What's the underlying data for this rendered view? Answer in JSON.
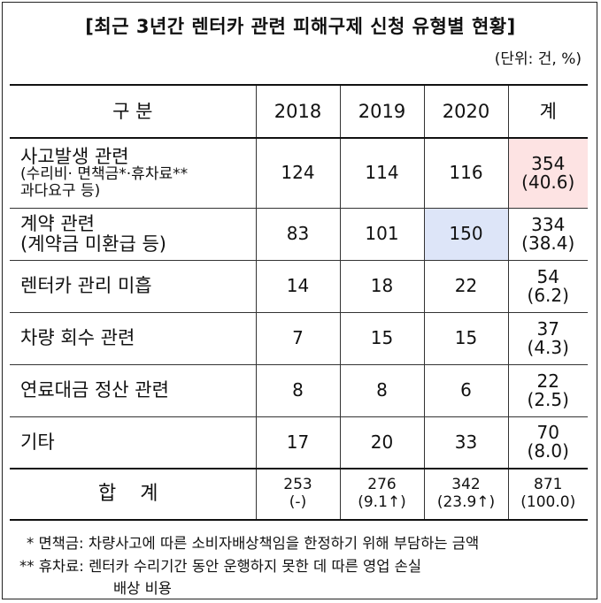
{
  "title": "[최근 3년간 렌터카 관련 피해구제 신청 유형별 현황]",
  "unit": "(단위: 건, %)",
  "table": {
    "headers": [
      "구 분",
      "2018",
      "2019",
      "2020",
      "계"
    ],
    "rows": [
      {
        "label": "사고발생 관련",
        "sub1": "(수리비· 면책금*·휴차료**",
        "sub2": "과다요구 등)",
        "v2018": "124",
        "v2019": "114",
        "v2020": "116",
        "total": "354",
        "pct": "(40.6)"
      },
      {
        "label": "계약 관련",
        "sub1": "(계약금 미환급 등)",
        "v2018": "83",
        "v2019": "101",
        "v2020": "150",
        "total": "334",
        "pct": "(38.4)"
      },
      {
        "label": "렌터카 관리 미흡",
        "v2018": "14",
        "v2019": "18",
        "v2020": "22",
        "total": "54",
        "pct": "(6.2)"
      },
      {
        "label": "차량 회수 관련",
        "v2018": "7",
        "v2019": "15",
        "v2020": "15",
        "total": "37",
        "pct": "(4.3)"
      },
      {
        "label": "연료대금 정산 관련",
        "v2018": "8",
        "v2019": "8",
        "v2020": "6",
        "total": "22",
        "pct": "(2.5)"
      },
      {
        "label": "기타",
        "v2018": "17",
        "v2019": "20",
        "v2020": "33",
        "total": "70",
        "pct": "(8.0)"
      }
    ],
    "total_row": {
      "label": "합 계",
      "v2018": "253",
      "v2018_change": "(-)",
      "v2019": "276",
      "v2019_change": "(9.1↑)",
      "v2020": "342",
      "v2020_change": "(23.9↑)",
      "total": "871",
      "pct": "(100.0)"
    }
  },
  "footnotes": [
    "* 면책금: 차량사고에 따른 소비자배상책임을 한정하기 위해 부담하는 금액",
    "** 휴차료: 렌터카 수리기간 동안 운행하지 못한 데 따른 영업 손실",
    "배상 비용"
  ],
  "colors": {
    "highlight_red": "#fde3e3",
    "highlight_blue": "#dde5f8"
  }
}
